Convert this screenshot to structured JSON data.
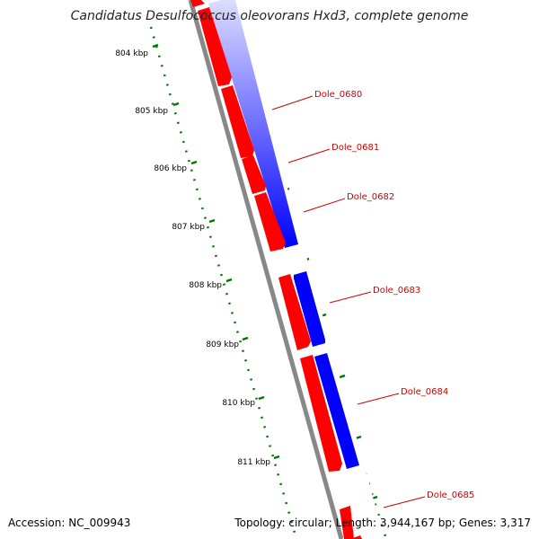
{
  "title": "Candidatus Desulfococcus oleovorans Hxd3, complete genome",
  "footer": {
    "accession": "Accession: NC_009943",
    "summary": "Topology: circular; Length: 3,944,167 bp; Genes: 3,317"
  },
  "scale": {
    "labels": [
      "804 kbp",
      "805 kbp",
      "806 kbp",
      "807 kbp",
      "808 kbp",
      "809 kbp",
      "810 kbp",
      "811 kbp"
    ]
  },
  "genes": [
    {
      "label": "Dole_0680"
    },
    {
      "label": "Dole_0681"
    },
    {
      "label": "Dole_0682"
    },
    {
      "label": "Dole_0683"
    },
    {
      "label": "Dole_0684"
    },
    {
      "label": "Dole_0685"
    }
  ],
  "colors": {
    "forward": "#ff0000",
    "reverse": "#0000ff",
    "backbone": "#888888",
    "ticks": "#007700",
    "label": "#cc0000"
  }
}
